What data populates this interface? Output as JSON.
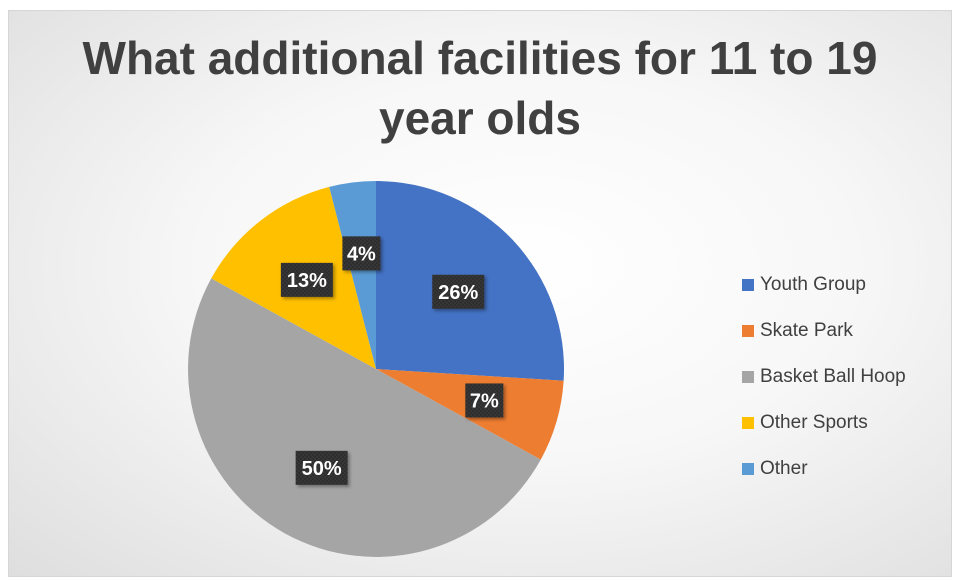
{
  "chart_data": {
    "type": "pie",
    "title_lines": [
      "What additional facilities for 11 to 19",
      "year olds"
    ],
    "categories": [
      "Youth Group",
      "Skate Park",
      "Basket Ball Hoop",
      "Other Sports",
      "Other"
    ],
    "values": [
      26,
      7,
      50,
      13,
      4
    ],
    "data_labels": [
      "26%",
      "7%",
      "50%",
      "13%",
      "4%"
    ],
    "colors": [
      "#4472C4",
      "#ED7D31",
      "#A5A5A5",
      "#FFC000",
      "#5B9BD5"
    ],
    "legend_position": "right",
    "start_angle": "12 o'clock",
    "direction": "clockwise"
  }
}
